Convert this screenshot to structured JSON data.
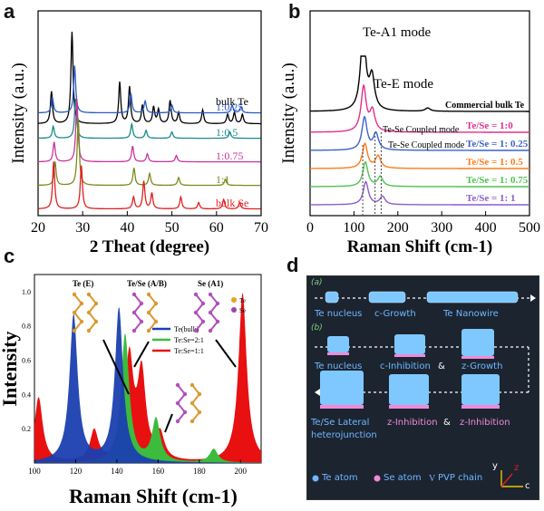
{
  "panels": {
    "a": "a",
    "b": "b",
    "c": "c",
    "d": "d"
  },
  "chart_data": [
    {
      "id": "a",
      "type": "line",
      "xlabel": "2 Theat (degree)",
      "ylabel": "Intensity (a.u.)",
      "xlim": [
        20,
        70
      ],
      "xticks": [
        20,
        30,
        40,
        50,
        60,
        70
      ],
      "colors": {
        "bulk Te": "#000000",
        "1:0.25": "#2b59c3",
        "1:0.5": "#1a8a8a",
        "1:0.75": "#c8369a",
        "1:1": "#7a8a1e",
        "bulk Se": "#e02020"
      },
      "series": [
        {
          "name": "bulk Te",
          "label": "bulk Te",
          "peaks": [
            [
              23,
              0.35
            ],
            [
              27.6,
              1.0
            ],
            [
              38.3,
              0.45
            ],
            [
              40.5,
              0.4
            ],
            [
              43.4,
              0.2
            ],
            [
              45.9,
              0.18
            ],
            [
              47,
              0.15
            ],
            [
              49.6,
              0.25
            ],
            [
              51.5,
              0.12
            ],
            [
              56.9,
              0.15
            ],
            [
              62.5,
              0.1
            ],
            [
              64,
              0.12
            ],
            [
              65.8,
              0.1
            ]
          ]
        },
        {
          "name": "1:0.25",
          "label": "1:0.25",
          "peaks": [
            [
              23.2,
              0.2
            ],
            [
              28.2,
              0.6
            ],
            [
              40.8,
              0.25
            ],
            [
              44,
              0.15
            ],
            [
              50,
              0.1
            ],
            [
              63.5,
              0.1
            ],
            [
              65.5,
              0.08
            ]
          ]
        },
        {
          "name": "1:0.5",
          "label": "1:0.5",
          "peaks": [
            [
              23.4,
              0.15
            ],
            [
              28.4,
              0.5
            ],
            [
              41,
              0.18
            ],
            [
              44.2,
              0.1
            ],
            [
              50,
              0.08
            ],
            [
              63,
              0.08
            ]
          ]
        },
        {
          "name": "1:0.75",
          "label": "1:0.75",
          "peaks": [
            [
              23.6,
              0.25
            ],
            [
              28.7,
              0.8
            ],
            [
              41.2,
              0.2
            ],
            [
              44.5,
              0.1
            ],
            [
              51,
              0.08
            ]
          ]
        },
        {
          "name": "1:1",
          "label": "1:1",
          "peaks": [
            [
              23.8,
              0.3
            ],
            [
              29,
              0.85
            ],
            [
              41.5,
              0.22
            ],
            [
              45,
              0.15
            ],
            [
              51.5,
              0.1
            ],
            [
              62,
              0.08
            ]
          ]
        },
        {
          "name": "bulk Se",
          "label": "bulk Se",
          "peaks": [
            [
              23.5,
              0.6
            ],
            [
              29.7,
              0.55
            ],
            [
              41.4,
              0.15
            ],
            [
              43.7,
              0.35
            ],
            [
              45.5,
              0.2
            ],
            [
              52,
              0.15
            ],
            [
              56,
              0.08
            ],
            [
              61.6,
              0.12
            ],
            [
              65.2,
              0.08
            ]
          ]
        }
      ]
    },
    {
      "id": "b",
      "type": "line",
      "xlabel": "Raman Shift (cm-1)",
      "ylabel": "Intensity (a.u.)",
      "xlim": [
        0,
        500
      ],
      "xticks": [
        0,
        100,
        200,
        300,
        400,
        500
      ],
      "annotations": [
        "Te-A1 mode",
        "Te-E mode",
        "Te-Se Coupled mode",
        "Te-Se Coupled mode"
      ],
      "series": [
        {
          "name": "Commercial bulk Te",
          "label": "Commercial bulk Te",
          "color": "#000000",
          "peaks": [
            [
              121,
              1.0
            ],
            [
              141,
              0.4
            ],
            [
              268,
              0.04
            ]
          ]
        },
        {
          "name": "Te/Se = 1:0",
          "label": "Te/Se = 1:0",
          "color": "#e0308a",
          "peaks": [
            [
              122,
              0.55
            ],
            [
              142,
              0.25
            ]
          ]
        },
        {
          "name": "Te/Se = 1: 0.25",
          "label": "Te/Se = 1: 0.25",
          "color": "#3a62c8",
          "peaks": [
            [
              124,
              0.4
            ],
            [
              150,
              0.2
            ]
          ]
        },
        {
          "name": "Te/Se = 1: 0.5",
          "label": "Te/Se = 1: 0.5",
          "color": "#ff7a1a",
          "peaks": [
            [
              125,
              0.3
            ],
            [
              155,
              0.15
            ]
          ]
        },
        {
          "name": "Te/Se = 1: 0.75",
          "label": "Te/Se = 1: 0.75",
          "color": "#4fc24f",
          "peaks": [
            [
              126,
              0.3
            ],
            [
              160,
              0.12
            ]
          ]
        },
        {
          "name": "Te/Se = 1: 1",
          "label": "Te/Se = 1: 1",
          "color": "#8c5cc8",
          "peaks": [
            [
              127,
              0.28
            ],
            [
              165,
              0.1
            ]
          ]
        }
      ]
    },
    {
      "id": "c",
      "type": "area",
      "xlabel": "Raman Shift (cm-1)",
      "ylabel": "Intensity",
      "xlim": [
        100,
        210
      ],
      "ylim": [
        0,
        1.1
      ],
      "xticks": [
        100,
        120,
        140,
        160,
        180,
        200
      ],
      "yticks": [
        0.2,
        0.4,
        0.6,
        0.8,
        1.0
      ],
      "annotations": [
        "Te (E)",
        "Te/Se (A/B)",
        "Se (A1)",
        "Te",
        "Se"
      ],
      "series": [
        {
          "name": "Te(bulk)",
          "color": "#1a3fb0",
          "peaks": [
            [
              119,
              0.86
            ],
            [
              141,
              0.9
            ]
          ]
        },
        {
          "name": "Te:Se=2:1",
          "color": "#3dbb3d",
          "peaks": [
            [
              144,
              0.75
            ],
            [
              159,
              0.25
            ],
            [
              187,
              0.08
            ]
          ]
        },
        {
          "name": "Te:Se=1:1",
          "color": "#e81010",
          "peaks": [
            [
              102,
              0.38
            ],
            [
              129,
              0.18
            ],
            [
              146,
              0.6
            ],
            [
              152,
              0.5
            ],
            [
              161,
              0.15
            ],
            [
              201,
              0.99
            ]
          ]
        }
      ]
    }
  ],
  "diagram_d": {
    "row_a_tag": "(a)",
    "row_b_tag": "(b)",
    "te_nucleus": "Te nucleus",
    "c_growth": "c-Growth",
    "te_nanowire": "Te Nanowire",
    "te_nucleus_b": "Te nucleus",
    "c_inhibition": "c-Inhibition",
    "amp1": "&",
    "z_growth": "z-Growth",
    "lateral_1": "Te/Se Lateral",
    "lateral_2": "heterojunction",
    "z_inhibition_1": "z-Inhibition",
    "amp2": "&",
    "z_inhibition_2": "z-Inhibition",
    "legend_te": "Te atom",
    "legend_se": "Se atom",
    "legend_pvp": "PVP chain",
    "axis_y": "y",
    "axis_z": "z",
    "axis_c": "c"
  }
}
